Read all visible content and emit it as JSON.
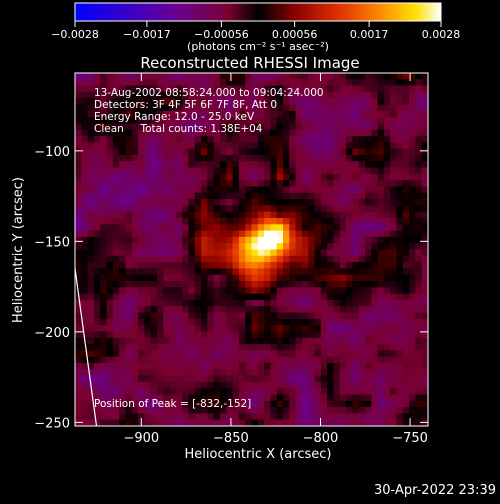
{
  "chart_data": {
    "type": "heatmap",
    "title": "Reconstructed RHESSI Image",
    "xlabel": "Heliocentric X (arcsec)",
    "ylabel": "Heliocentric Y (arcsec)",
    "xlim": [
      -937,
      -740
    ],
    "ylim": [
      -252,
      -57
    ],
    "x_ticks": [
      -900,
      -850,
      -800,
      -750
    ],
    "y_ticks": [
      -100,
      -150,
      -200,
      -250
    ],
    "x_tick_labels": [
      "−900",
      "−850",
      "−800",
      "−750"
    ],
    "y_tick_labels": [
      "−100",
      "−150",
      "−200",
      "−250"
    ],
    "colorbar": {
      "min": -0.0028,
      "max": 0.0028,
      "ticks": [
        -0.0028,
        -0.0017,
        -0.00056,
        0.00056,
        0.0017,
        0.0028
      ],
      "tick_labels": [
        "−0.0028",
        "−0.0017",
        "−0.00056",
        "0.00056",
        "0.0017",
        "0.0028"
      ],
      "unit_label": "(photons cm⁻² s⁻¹ asec⁻²)",
      "colormap": "black-purple-red-orange-yellow-white"
    },
    "annotations": {
      "time_range": "13-Aug-2002 08:58:24.000 to 09:04:24.000",
      "detectors": "Detectors: 3F 4F 5F 6F 7F 8F, Att 0",
      "energy_range": "Energy Range: 12.0 - 25.0 keV",
      "clean_counts": "Clean     Total counts: 1.38E+04",
      "peak_position": "Position of Peak = [-832,-152]"
    },
    "source": {
      "peak_x": -832,
      "peak_y": -152,
      "peak_value": 0.0028,
      "total_counts": 13800
    },
    "limb_line": {
      "x": [
        -937,
        -925
      ],
      "y": [
        -165,
        -252
      ]
    }
  },
  "footer": {
    "timestamp": "30-Apr-2022 23:39"
  }
}
